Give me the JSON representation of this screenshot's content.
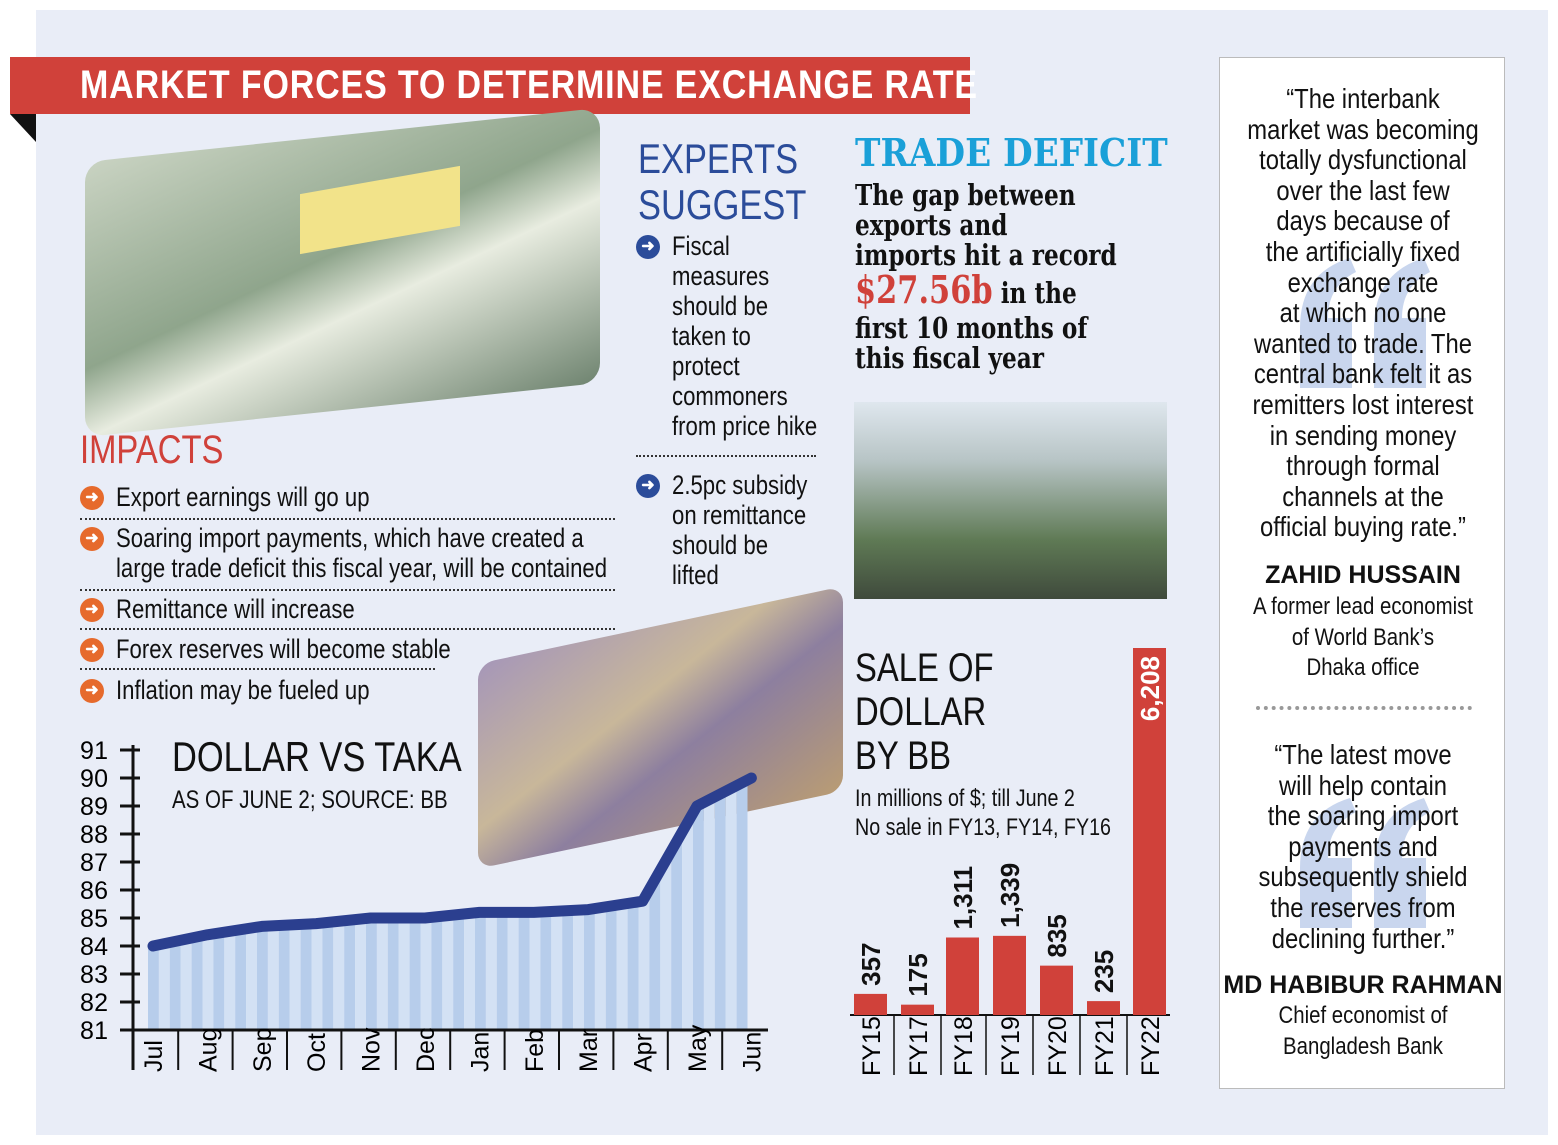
{
  "title": "MARKET FORCES TO DETERMINE EXCHANGE RATE",
  "impacts": {
    "heading": "IMPACTS",
    "items": [
      "Export earnings will go up",
      "Soaring import payments, which have created a",
      "large trade deficit this fiscal year, will be contained",
      "Remittance will increase",
      "Forex reserves will become stable",
      "Inflation may be fueled up"
    ]
  },
  "experts": {
    "heading1": "EXPERTS",
    "heading2": "SUGGEST",
    "item1": [
      "Fiscal",
      "measures",
      "should be",
      "taken to",
      "protect",
      "commoners",
      "from price hike"
    ],
    "item2": [
      "2.5pc subsidy",
      "on remittance",
      "should be",
      "lifted"
    ]
  },
  "trade": {
    "heading": "TRADE DEFICIT",
    "lines": [
      "The gap between",
      "exports and",
      "imports hit a record"
    ],
    "amount": "$27.56b",
    "after_amount": " in the",
    "lines2": [
      "first 10 months of",
      "this fiscal year"
    ]
  },
  "quotes": [
    {
      "text": [
        "“The interbank",
        "market was becoming",
        "totally dysfunctional",
        "over the last few",
        "days because of",
        "the artificially fixed",
        "exchange rate",
        "at which no one",
        "wanted to trade.  The",
        "central bank felt it as",
        "remitters lost interest",
        "in sending money",
        "through formal",
        "channels at the",
        "official buying rate.”"
      ],
      "name": "ZAHID HUSSAIN",
      "role": [
        "A former lead economist",
        "of World Bank’s",
        "Dhaka office"
      ]
    },
    {
      "text": [
        "“The latest move",
        "will help contain",
        "the soaring import",
        "payments and",
        "subsequently shield",
        "the reserves from",
        "declining further.”"
      ],
      "name": "MD HABIBUR RAHMAN",
      "role": [
        "Chief economist of",
        "Bangladesh Bank"
      ]
    }
  ],
  "chart_data": [
    {
      "type": "line",
      "title": "DOLLAR VS TAKA",
      "subtitle": "AS OF JUNE 2; SOURCE: BB",
      "categories": [
        "Jul",
        "Aug",
        "Sep",
        "Oct",
        "Nov",
        "Dec",
        "Jan",
        "Feb",
        "Mar",
        "Apr",
        "May",
        "Jun"
      ],
      "values": [
        84.0,
        84.4,
        84.7,
        84.8,
        85.0,
        85.0,
        85.2,
        85.2,
        85.3,
        85.6,
        89.0,
        90.0
      ],
      "yticks": [
        "81",
        "82",
        "83",
        "84",
        "85",
        "86",
        "87",
        "88",
        "89",
        "90",
        "91"
      ],
      "ylim": [
        81,
        91
      ],
      "color": "#2b3f8f",
      "fill": "#b7cdeb"
    },
    {
      "type": "bar",
      "title": [
        "SALE OF",
        "DOLLAR",
        "BY BB"
      ],
      "subtitle": [
        "In millions of $; till June 2",
        "No sale in FY13, FY14, FY16"
      ],
      "categories": [
        "FY15",
        "FY17",
        "FY18",
        "FY19",
        "FY20",
        "FY21",
        "FY22"
      ],
      "values": [
        357,
        175,
        1311,
        1339,
        835,
        235,
        6208
      ],
      "labels": [
        "357",
        "175",
        "1,311",
        "1,339",
        "835",
        "235",
        "6,208"
      ],
      "ylim": [
        0,
        6208
      ],
      "color": "#d0413a"
    }
  ]
}
